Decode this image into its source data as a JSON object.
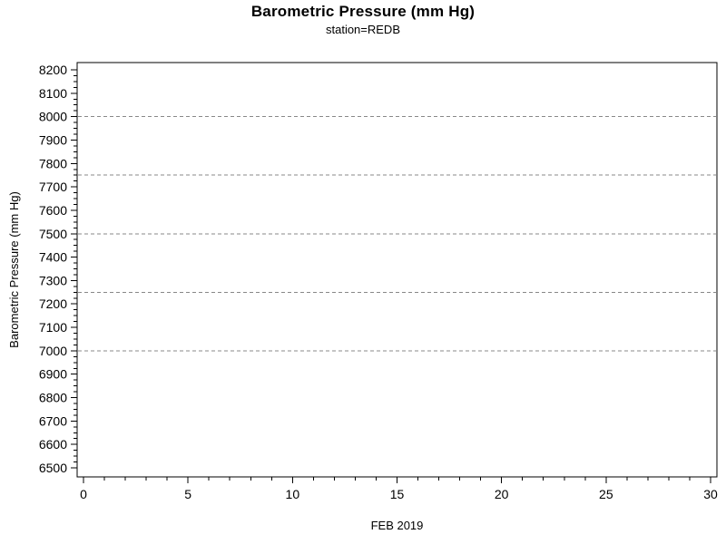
{
  "header": {
    "title": "Barometric Pressure (mm Hg)",
    "subtitle": "station=REDB"
  },
  "chart_data": {
    "type": "line",
    "title": "Barometric Pressure (mm Hg)",
    "subtitle": "station=REDB",
    "xlabel": "FEB 2019",
    "ylabel": "Barometric Pressure (mm Hg)",
    "xlim": [
      0,
      30
    ],
    "ylim": [
      6500,
      8200
    ],
    "x_major_ticks": [
      0,
      5,
      10,
      15,
      20,
      25,
      30
    ],
    "x_minor_tick_step": 1,
    "y_major_tick_step": 100,
    "y_minor_tick_step": 25,
    "y_tick_labels": [
      8200,
      8100,
      8000,
      7900,
      7800,
      7700,
      7600,
      7500,
      7400,
      7300,
      7200,
      7100,
      7000,
      6900,
      6800,
      6700,
      6600,
      6500
    ],
    "reference_lines_y": [
      8000,
      7750,
      7500,
      7250,
      7000
    ],
    "grid_style": "dashed",
    "legend_position": "none",
    "series": [],
    "colors": {
      "axis": "#000000",
      "text": "#000000",
      "grid": "#888888",
      "background": "#ffffff"
    }
  }
}
